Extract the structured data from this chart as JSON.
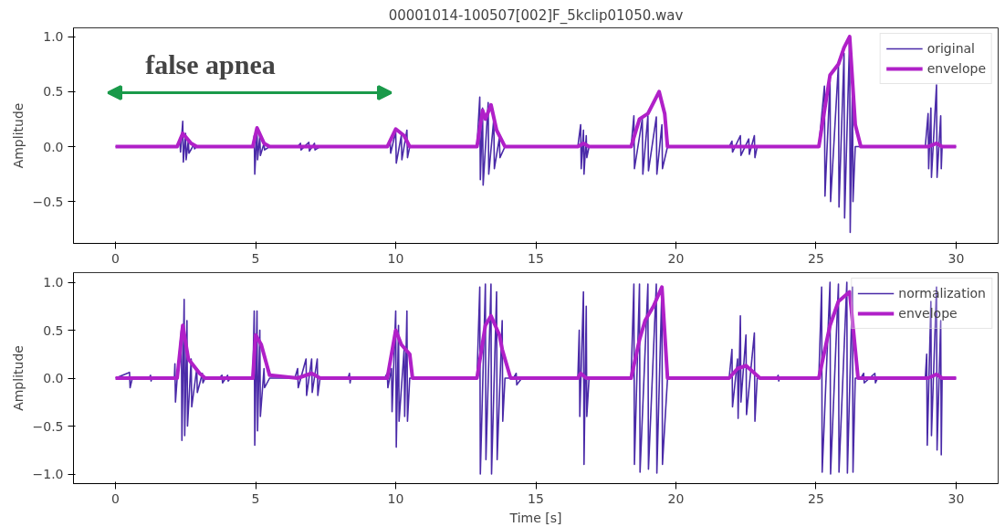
{
  "chart_data": [
    {
      "type": "line",
      "title": "00001014-100507[002]F_5kclip01050.wav",
      "ylabel": "Amplitude",
      "xlim": [
        -1.5,
        31.5
      ],
      "ylim": [
        -0.88,
        1.08
      ],
      "xticks": [
        0,
        5,
        10,
        15,
        20,
        25,
        30
      ],
      "yticks": [
        {
          "value": -0.5,
          "label": "−0.5"
        },
        {
          "value": 0,
          "label": "0.0"
        },
        {
          "value": 0.5,
          "label": "0.5"
        },
        {
          "value": 1,
          "label": "1.0"
        }
      ],
      "legend": "top right",
      "grid": false,
      "annotations": [
        "false apnea"
      ],
      "series": [
        {
          "name": "original",
          "color": "#4a2aa8",
          "x": [
            0,
            2.2,
            2.3,
            2.32,
            2.4,
            2.42,
            2.5,
            2.52,
            2.6,
            2.62,
            2.8,
            2.82,
            2.9,
            4.9,
            4.95,
            4.97,
            5.05,
            5.07,
            5.15,
            5.17,
            5.3,
            5.32,
            5.5,
            6.5,
            6.6,
            6.62,
            6.9,
            6.92,
            7.1,
            7.12,
            7.3,
            9.7,
            9.8,
            9.82,
            10.0,
            10.02,
            10.2,
            10.22,
            10.4,
            10.42,
            10.5,
            12.9,
            13.0,
            13.02,
            13.1,
            13.12,
            13.3,
            13.32,
            13.5,
            13.52,
            13.7,
            13.72,
            13.9,
            16.5,
            16.6,
            16.62,
            16.7,
            16.72,
            16.8,
            16.82,
            16.9,
            18.4,
            18.5,
            18.52,
            18.8,
            18.82,
            19.0,
            19.02,
            19.3,
            19.32,
            19.5,
            19.52,
            19.7,
            21.9,
            22.0,
            22.02,
            22.3,
            22.32,
            22.6,
            22.62,
            22.8,
            22.82,
            22.9,
            25.1,
            25.3,
            25.32,
            25.5,
            25.52,
            25.8,
            25.82,
            26.0,
            26.02,
            26.2,
            26.22,
            26.3,
            26.32,
            26.4,
            28.9,
            29.0,
            29.02,
            29.1,
            29.12,
            29.3,
            29.32,
            29.45,
            29.47,
            29.5,
            30
          ],
          "values": [
            0,
            0,
            0.05,
            -0.05,
            0.23,
            -0.14,
            0.12,
            -0.12,
            0.06,
            -0.06,
            0.02,
            -0.02,
            0,
            0,
            0.1,
            -0.25,
            0.17,
            -0.12,
            0.1,
            -0.08,
            0.03,
            -0.03,
            0,
            0,
            0.03,
            -0.03,
            0.04,
            -0.04,
            0.03,
            -0.03,
            0,
            0,
            0.05,
            -0.06,
            0.14,
            -0.15,
            0.1,
            -0.12,
            0.15,
            -0.1,
            0,
            0,
            0.45,
            -0.3,
            0.35,
            -0.35,
            0.4,
            -0.25,
            0.25,
            -0.2,
            0.08,
            -0.1,
            0,
            0,
            0.2,
            -0.2,
            0.15,
            -0.25,
            0.1,
            -0.1,
            0,
            0,
            0.28,
            -0.2,
            0.25,
            -0.25,
            0.28,
            -0.22,
            0.27,
            -0.25,
            0.2,
            -0.2,
            0,
            0,
            0.05,
            -0.05,
            0.1,
            -0.08,
            0.07,
            -0.07,
            0.1,
            -0.1,
            0,
            0,
            0.55,
            -0.45,
            0.6,
            -0.5,
            0.75,
            -0.55,
            0.85,
            -0.65,
            1.0,
            -0.78,
            0.6,
            -0.5,
            0,
            0,
            0.3,
            -0.2,
            0.35,
            -0.28,
            0.56,
            -0.28,
            0.28,
            -0.2,
            0,
            0
          ]
        },
        {
          "name": "envelope",
          "color": "#b020c8",
          "x": [
            0,
            2.2,
            2.4,
            2.7,
            2.9,
            4.9,
            5.05,
            5.3,
            5.5,
            9.7,
            10.0,
            10.3,
            10.5,
            12.9,
            13.1,
            13.2,
            13.4,
            13.6,
            13.9,
            16.5,
            16.7,
            16.9,
            18.4,
            18.7,
            19.0,
            19.2,
            19.4,
            19.6,
            19.7,
            25.1,
            25.5,
            25.8,
            26.0,
            26.2,
            26.4,
            26.6,
            29.0,
            29.3,
            29.5,
            30
          ],
          "values": [
            0,
            0,
            0.12,
            0.03,
            0,
            0,
            0.17,
            0.03,
            0,
            0,
            0.16,
            0.1,
            0,
            0,
            0.33,
            0.25,
            0.38,
            0.15,
            0,
            0,
            0.03,
            0,
            0,
            0.25,
            0.3,
            0.4,
            0.5,
            0.3,
            0,
            0,
            0.65,
            0.75,
            0.9,
            1.0,
            0.2,
            0,
            0,
            0.03,
            0,
            0
          ]
        }
      ]
    },
    {
      "type": "line",
      "xlabel": "Time [s]",
      "ylabel": "Amplitude",
      "xlim": [
        -1.5,
        31.5
      ],
      "ylim": [
        -1.1,
        1.1
      ],
      "xticks": [
        0,
        5,
        10,
        15,
        20,
        25,
        30
      ],
      "yticks": [
        {
          "value": -1,
          "label": "−1.0"
        },
        {
          "value": -0.5,
          "label": "−0.5"
        },
        {
          "value": 0,
          "label": "0.0"
        },
        {
          "value": 0.5,
          "label": "0.5"
        },
        {
          "value": 1,
          "label": "1.0"
        }
      ],
      "legend": "top right",
      "grid": false,
      "series": [
        {
          "name": "normalization",
          "color": "#4a2aa8",
          "x": [
            0,
            0.5,
            0.52,
            0.6,
            1.2,
            1.25,
            1.27,
            1.3,
            2.1,
            2.12,
            2.14,
            2.2,
            2.35,
            2.37,
            2.45,
            2.47,
            2.55,
            2.57,
            2.7,
            2.72,
            2.9,
            2.92,
            3.1,
            3.12,
            3.2,
            3.7,
            3.8,
            3.82,
            4.0,
            4.02,
            4.1,
            4.9,
            4.95,
            4.97,
            5.05,
            5.07,
            5.15,
            5.17,
            5.3,
            5.32,
            5.5,
            6.4,
            6.5,
            6.52,
            6.8,
            6.82,
            7.0,
            7.02,
            7.2,
            7.22,
            7.3,
            8.3,
            8.35,
            8.37,
            8.4,
            9.6,
            9.7,
            9.72,
            9.85,
            9.87,
            10.0,
            10.02,
            10.1,
            10.12,
            10.3,
            10.32,
            10.4,
            10.42,
            10.5,
            12.9,
            13.0,
            13.02,
            13.2,
            13.22,
            13.4,
            13.42,
            13.6,
            13.62,
            13.8,
            13.82,
            13.9,
            14.2,
            14.3,
            14.32,
            14.5,
            16.5,
            16.55,
            16.57,
            16.7,
            16.72,
            16.8,
            16.82,
            16.9,
            18.4,
            18.5,
            18.52,
            18.7,
            18.72,
            19.0,
            19.02,
            19.3,
            19.32,
            19.5,
            19.52,
            19.7,
            21.9,
            22.0,
            22.02,
            22.2,
            22.22,
            22.3,
            22.32,
            22.5,
            22.52,
            22.8,
            22.82,
            22.9,
            23.6,
            23.65,
            23.67,
            23.7,
            25.1,
            25.2,
            25.22,
            25.5,
            25.52,
            25.8,
            25.82,
            26.1,
            26.12,
            26.3,
            26.32,
            26.4,
            26.6,
            26.7,
            26.72,
            27.1,
            27.12,
            27.2,
            28.9,
            28.95,
            28.97,
            29.1,
            29.12,
            29.3,
            29.32,
            29.45,
            29.47,
            29.5,
            30
          ],
          "values": [
            0,
            0.06,
            -0.1,
            0,
            0,
            0.03,
            -0.03,
            0,
            0,
            0.15,
            -0.25,
            0,
            0.5,
            -0.65,
            0.82,
            -0.6,
            0.6,
            -0.5,
            0.2,
            -0.3,
            0.1,
            -0.15,
            0.05,
            -0.05,
            0,
            0,
            0.03,
            -0.05,
            0.03,
            -0.03,
            0,
            0,
            0.7,
            -0.7,
            0.7,
            -0.55,
            0.5,
            -0.4,
            0.1,
            -0.1,
            0,
            0,
            0.1,
            -0.1,
            0.2,
            -0.18,
            0.2,
            -0.15,
            0.2,
            -0.18,
            0,
            0,
            0.05,
            -0.05,
            0,
            0,
            0.05,
            -0.1,
            0.1,
            -0.35,
            0.7,
            -0.72,
            0.55,
            -0.45,
            0.3,
            -0.4,
            0.7,
            -0.45,
            0,
            0,
            0.95,
            -1.0,
            0.98,
            -0.85,
            0.98,
            -1.0,
            0.9,
            -0.85,
            0.6,
            -0.45,
            0,
            0,
            0.05,
            -0.07,
            0,
            0,
            0.5,
            -0.4,
            0.9,
            -0.9,
            0.75,
            -0.4,
            0,
            0,
            0.98,
            -0.9,
            0.98,
            -0.98,
            0.98,
            -0.95,
            0.98,
            -0.99,
            0.95,
            -0.9,
            0,
            0,
            0.3,
            -0.3,
            0.2,
            -0.42,
            0.65,
            -0.25,
            0.45,
            -0.38,
            0.47,
            -0.45,
            0,
            0,
            0.03,
            -0.03,
            0,
            0,
            0.95,
            -0.98,
            1.0,
            -1.0,
            0.98,
            -0.98,
            1.0,
            -0.99,
            0.95,
            -0.98,
            0,
            0,
            0.05,
            -0.05,
            0.05,
            -0.05,
            0,
            0,
            0.25,
            -0.7,
            0.8,
            -0.6,
            0.95,
            -0.75,
            0.6,
            -0.8,
            0,
            0
          ]
        },
        {
          "name": "envelope",
          "color": "#b020c8",
          "x": [
            0,
            2.2,
            2.4,
            2.6,
            3.0,
            3.2,
            4.9,
            5.0,
            5.2,
            5.5,
            6.5,
            7.0,
            7.3,
            9.7,
            10.0,
            10.2,
            10.5,
            10.6,
            12.9,
            13.2,
            13.4,
            13.7,
            13.8,
            14.1,
            16.5,
            16.6,
            16.8,
            18.4,
            18.7,
            18.9,
            19.2,
            19.5,
            19.7,
            21.9,
            22.2,
            22.5,
            23.0,
            25.1,
            25.5,
            25.8,
            26.2,
            26.5,
            29.0,
            29.3,
            29.5,
            30
          ],
          "values": [
            0,
            0,
            0.55,
            0.2,
            0.05,
            0,
            0,
            0.45,
            0.35,
            0.03,
            0,
            0.05,
            0,
            0,
            0.5,
            0.35,
            0.25,
            0,
            0,
            0.55,
            0.65,
            0.45,
            0.3,
            0,
            0,
            0.05,
            0,
            0,
            0.4,
            0.6,
            0.75,
            0.95,
            0,
            0,
            0.1,
            0.13,
            0,
            0,
            0.55,
            0.8,
            0.9,
            0,
            0,
            0.04,
            0,
            0
          ]
        }
      ]
    }
  ]
}
